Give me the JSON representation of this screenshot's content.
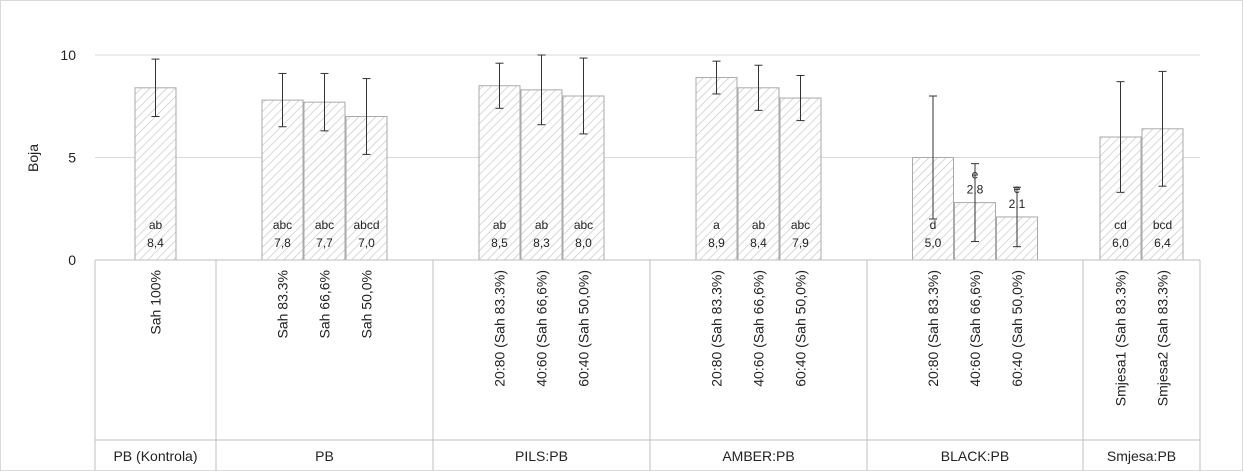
{
  "chart_data": {
    "type": "bar",
    "ylabel": "Boja",
    "ylim": [
      0,
      10
    ],
    "yticks": [
      "0",
      "5",
      "10"
    ],
    "grid": true,
    "legend": "none",
    "pattern": "diagonal-hatch",
    "colors": {
      "bar_fill": "#ffffff",
      "bar_stroke": "#aaaaaa",
      "hatch": "#c8c8c8",
      "grid": "#d9d9d9",
      "error_bar": "#333333"
    },
    "categories": [
      "Sah 100%",
      "Sah 83.3%",
      "Sah 66,6%",
      "Sah 50,0%",
      "20:80 (Sah 83.3%)",
      "40:60 (Sah 66,6%)",
      "60:40 (Sah 50,0%)",
      "20:80 (Sah 83.3%)",
      "40:60 (Sah 66,6%)",
      "60:40 (Sah 50,0%)",
      "20:80 (Sah 83.3%)",
      "40:60 (Sah 66,6%)",
      "60:40 (Sah 50,0%)",
      "Smjesa1 (Sah 83.3%)",
      "Smjesa2 (Sah 83.3%)"
    ],
    "values": [
      8.4,
      7.8,
      7.7,
      7.0,
      8.5,
      8.3,
      8.0,
      8.9,
      8.4,
      7.9,
      5.0,
      2.8,
      2.1,
      6.0,
      6.4
    ],
    "error": [
      1.4,
      1.3,
      1.4,
      1.85,
      1.1,
      1.7,
      1.85,
      0.8,
      1.1,
      1.1,
      3.0,
      1.9,
      1.45,
      2.7,
      2.8
    ],
    "value_labels": [
      "8,4",
      "7,8",
      "7,7",
      "7,0",
      "8,5",
      "8,3",
      "8,0",
      "8,9",
      "8,4",
      "7,9",
      "5,0",
      "2,8",
      "2,1",
      "6,0",
      "6,4"
    ],
    "letters": [
      "ab",
      "abc",
      "abc",
      "abcd",
      "ab",
      "ab",
      "abc",
      "a",
      "ab",
      "abc",
      "d",
      "e",
      "e",
      "cd",
      "bcd"
    ],
    "groups": [
      {
        "name": "PB (Kontrola)",
        "count": 1
      },
      {
        "name": "PB",
        "count": 3
      },
      {
        "name": "PILS:PB",
        "count": 3
      },
      {
        "name": "AMBER:PB",
        "count": 3
      },
      {
        "name": "BLACK:PB",
        "count": 3
      },
      {
        "name": "Smjesa:PB",
        "count": 2
      }
    ]
  }
}
